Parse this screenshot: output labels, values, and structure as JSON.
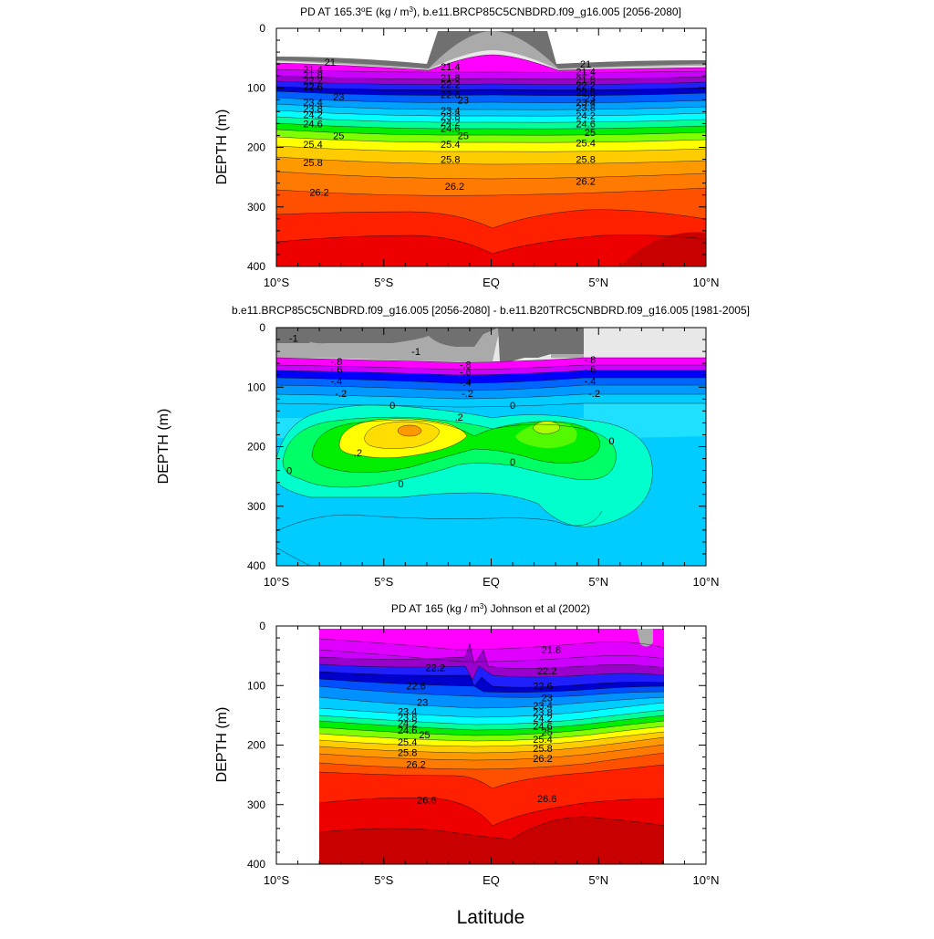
{
  "figure": {
    "xlabel": "Latitude"
  },
  "panels": [
    {
      "id": "top",
      "title_main": "PD AT 165.3",
      "title_deg": "o",
      "title_mid": "E (kg / m",
      "title_sup": "3",
      "title_end": "), b.e11.BRCP85C5CNBDRD.f09_g16.005 [2056-2080]",
      "ylabel": "DEPTH (m)"
    },
    {
      "id": "middle",
      "title_main": "b.e11.BRCP85C5CNBDRD.f09_g16.005 [2056-2080] - b.e11.B20TRC5CNBDRD.f09_g16.005 [1981-2005]",
      "ylabel": "DEPTH (m)"
    },
    {
      "id": "bottom",
      "title_main": "PD AT 165 (kg / m",
      "title_sup": "3",
      "title_end": ") Johnson et al (2002)",
      "ylabel": "DEPTH (m)"
    }
  ],
  "axes": {
    "x_ticks": [
      "10°S",
      "5°S",
      "EQ",
      "5°N",
      "10°N"
    ],
    "y_ticks": [
      "0",
      "100",
      "200",
      "300",
      "400"
    ]
  },
  "chart_data": [
    {
      "type": "heatmap",
      "title": "PD AT 165.3°E (kg / m3), b.e11.BRCP85C5CNBDRD.f09_g16.005 [2056-2080]",
      "xlabel": "",
      "ylabel": "DEPTH (m)",
      "xlim": [
        -10,
        10
      ],
      "ylim": [
        400,
        0
      ],
      "x_tick_values": [
        -10,
        -5,
        0,
        5,
        10
      ],
      "y_tick_values": [
        0,
        100,
        200,
        300,
        400
      ],
      "contour_labels": [
        {
          "text": "21",
          "x": -7.5,
          "y": 57
        },
        {
          "text": "21.4",
          "x": -8.3,
          "y": 69
        },
        {
          "text": "21.8",
          "x": -8.3,
          "y": 78
        },
        {
          "text": "22.2",
          "x": -8.3,
          "y": 87
        },
        {
          "text": "22.6",
          "x": -8.3,
          "y": 98
        },
        {
          "text": "23",
          "x": -7.1,
          "y": 115
        },
        {
          "text": "23.4",
          "x": -8.3,
          "y": 124
        },
        {
          "text": "23.8",
          "x": -8.3,
          "y": 135
        },
        {
          "text": "24.2",
          "x": -8.3,
          "y": 145
        },
        {
          "text": "24.6",
          "x": -8.3,
          "y": 160
        },
        {
          "text": "25",
          "x": -7.1,
          "y": 180
        },
        {
          "text": "25.4",
          "x": -8.3,
          "y": 195
        },
        {
          "text": "25.8",
          "x": -8.3,
          "y": 225
        },
        {
          "text": "26.2",
          "x": -8.0,
          "y": 275
        },
        {
          "text": "21.4",
          "x": -1.9,
          "y": 64
        },
        {
          "text": "21.8",
          "x": -1.9,
          "y": 83
        },
        {
          "text": "22.2",
          "x": -1.9,
          "y": 94
        },
        {
          "text": "22.6",
          "x": -1.9,
          "y": 111
        },
        {
          "text": "23",
          "x": -1.3,
          "y": 120
        },
        {
          "text": "23.4",
          "x": -1.9,
          "y": 138
        },
        {
          "text": "23.8",
          "x": -1.9,
          "y": 148
        },
        {
          "text": "24.2",
          "x": -1.9,
          "y": 158
        },
        {
          "text": "24.6",
          "x": -1.9,
          "y": 168
        },
        {
          "text": "25",
          "x": -1.3,
          "y": 180
        },
        {
          "text": "25.4",
          "x": -1.9,
          "y": 195
        },
        {
          "text": "25.8",
          "x": -1.9,
          "y": 220
        },
        {
          "text": "26.2",
          "x": -1.7,
          "y": 265
        },
        {
          "text": "21",
          "x": 4.4,
          "y": 60
        },
        {
          "text": "21.4",
          "x": 4.4,
          "y": 73
        },
        {
          "text": "21.8",
          "x": 4.4,
          "y": 86
        },
        {
          "text": "22.2",
          "x": 4.4,
          "y": 96
        },
        {
          "text": "22.6",
          "x": 4.4,
          "y": 107
        },
        {
          "text": "23",
          "x": 4.6,
          "y": 117
        },
        {
          "text": "23.4",
          "x": 4.4,
          "y": 124
        },
        {
          "text": "23.8",
          "x": 4.4,
          "y": 133
        },
        {
          "text": "24.2",
          "x": 4.4,
          "y": 146
        },
        {
          "text": "24.6",
          "x": 4.4,
          "y": 160
        },
        {
          "text": "25",
          "x": 4.6,
          "y": 175
        },
        {
          "text": "25.4",
          "x": 4.4,
          "y": 192
        },
        {
          "text": "25.8",
          "x": 4.4,
          "y": 220
        },
        {
          "text": "26.2",
          "x": 4.4,
          "y": 257
        }
      ]
    },
    {
      "type": "heatmap",
      "title": "b.e11.BRCP85C5CNBDRD.f09_g16.005 [2056-2080] - b.e11.B20TRC5CNBDRD.f09_g16.005 [1981-2005]",
      "xlabel": "",
      "ylabel": "DEPTH (m)",
      "xlim": [
        -10,
        10
      ],
      "ylim": [
        400,
        0
      ],
      "x_tick_values": [
        -10,
        -5,
        0,
        5,
        10
      ],
      "y_tick_values": [
        0,
        100,
        200,
        300,
        400
      ],
      "contour_labels": [
        {
          "text": "-1",
          "x": -9.2,
          "y": 18
        },
        {
          "text": "-1",
          "x": -3.5,
          "y": 40
        },
        {
          "text": "-.8",
          "x": -7.2,
          "y": 57
        },
        {
          "text": "-.6",
          "x": -7.2,
          "y": 70
        },
        {
          "text": "-.4",
          "x": -7.2,
          "y": 90
        },
        {
          "text": "-.2",
          "x": -7.0,
          "y": 110
        },
        {
          "text": "0",
          "x": -4.6,
          "y": 130
        },
        {
          "text": "-.8",
          "x": -1.2,
          "y": 62
        },
        {
          "text": "-.6",
          "x": -1.2,
          "y": 74
        },
        {
          "text": "-.4",
          "x": -1.2,
          "y": 92
        },
        {
          "text": "-.2",
          "x": -1.1,
          "y": 110
        },
        {
          "text": ".2",
          "x": -1.5,
          "y": 150
        },
        {
          "text": "0",
          "x": 1.0,
          "y": 130
        },
        {
          "text": "-.8",
          "x": 4.6,
          "y": 54
        },
        {
          "text": "-.6",
          "x": 4.6,
          "y": 70
        },
        {
          "text": "-.4",
          "x": 4.6,
          "y": 90
        },
        {
          "text": "-.2",
          "x": 4.8,
          "y": 110
        },
        {
          "text": ".2",
          "x": -6.2,
          "y": 210
        },
        {
          "text": "0",
          "x": -9.4,
          "y": 240
        },
        {
          "text": "0",
          "x": -4.2,
          "y": 262
        },
        {
          "text": "0",
          "x": 1.0,
          "y": 225
        },
        {
          "text": "0",
          "x": 5.6,
          "y": 190
        }
      ]
    },
    {
      "type": "heatmap",
      "title": "PD AT 165 (kg / m3) Johnson et al (2002)",
      "xlabel": "Latitude",
      "ylabel": "DEPTH (m)",
      "xlim": [
        -10,
        10
      ],
      "ylim": [
        400,
        0
      ],
      "x_tick_values": [
        -10,
        -5,
        0,
        5,
        10
      ],
      "y_tick_values": [
        0,
        100,
        200,
        300,
        400
      ],
      "data_extent_x": [
        -8,
        8
      ],
      "data_extent_y": [
        5,
        400
      ],
      "contour_labels": [
        {
          "text": "21.8",
          "x": 2.8,
          "y": 40
        },
        {
          "text": "22.2",
          "x": -2.6,
          "y": 70
        },
        {
          "text": "22.2",
          "x": 2.6,
          "y": 75
        },
        {
          "text": "22.6",
          "x": -3.5,
          "y": 100
        },
        {
          "text": "22.6",
          "x": 2.4,
          "y": 100
        },
        {
          "text": "23",
          "x": -3.2,
          "y": 128
        },
        {
          "text": "23",
          "x": 2.6,
          "y": 120
        },
        {
          "text": "23.4",
          "x": -3.9,
          "y": 143
        },
        {
          "text": "23.8",
          "x": -3.9,
          "y": 153
        },
        {
          "text": "24.2",
          "x": -3.9,
          "y": 163
        },
        {
          "text": "24.6",
          "x": -3.9,
          "y": 175
        },
        {
          "text": "25",
          "x": -3.1,
          "y": 182
        },
        {
          "text": "25.4",
          "x": -3.9,
          "y": 195
        },
        {
          "text": "25.8",
          "x": -3.9,
          "y": 212
        },
        {
          "text": "26.2",
          "x": -3.5,
          "y": 232
        },
        {
          "text": "26.6",
          "x": -3.0,
          "y": 292
        },
        {
          "text": "23.4",
          "x": 2.4,
          "y": 133
        },
        {
          "text": "23.8",
          "x": 2.4,
          "y": 145
        },
        {
          "text": "24.2",
          "x": 2.4,
          "y": 155
        },
        {
          "text": "24.6",
          "x": 2.4,
          "y": 168
        },
        {
          "text": "25",
          "x": 2.6,
          "y": 178
        },
        {
          "text": "25.4",
          "x": 2.4,
          "y": 190
        },
        {
          "text": "25.8",
          "x": 2.4,
          "y": 205
        },
        {
          "text": "26.2",
          "x": 2.4,
          "y": 222
        },
        {
          "text": "26.6",
          "x": 2.6,
          "y": 290
        }
      ]
    }
  ],
  "colors": {
    "palette": [
      "#707070",
      "#aaaaaa",
      "#e8e8e8",
      "#ff00ff",
      "#cc00ff",
      "#9900cc",
      "#2020ff",
      "#0000cc",
      "#0060ff",
      "#00a0ff",
      "#00ccff",
      "#00ffff",
      "#00ff99",
      "#00ee00",
      "#80ff00",
      "#ffff00",
      "#ffcc00",
      "#ff9900",
      "#ff7a00",
      "#ff5000",
      "#ff2000",
      "#ee0000",
      "#c80000"
    ]
  }
}
